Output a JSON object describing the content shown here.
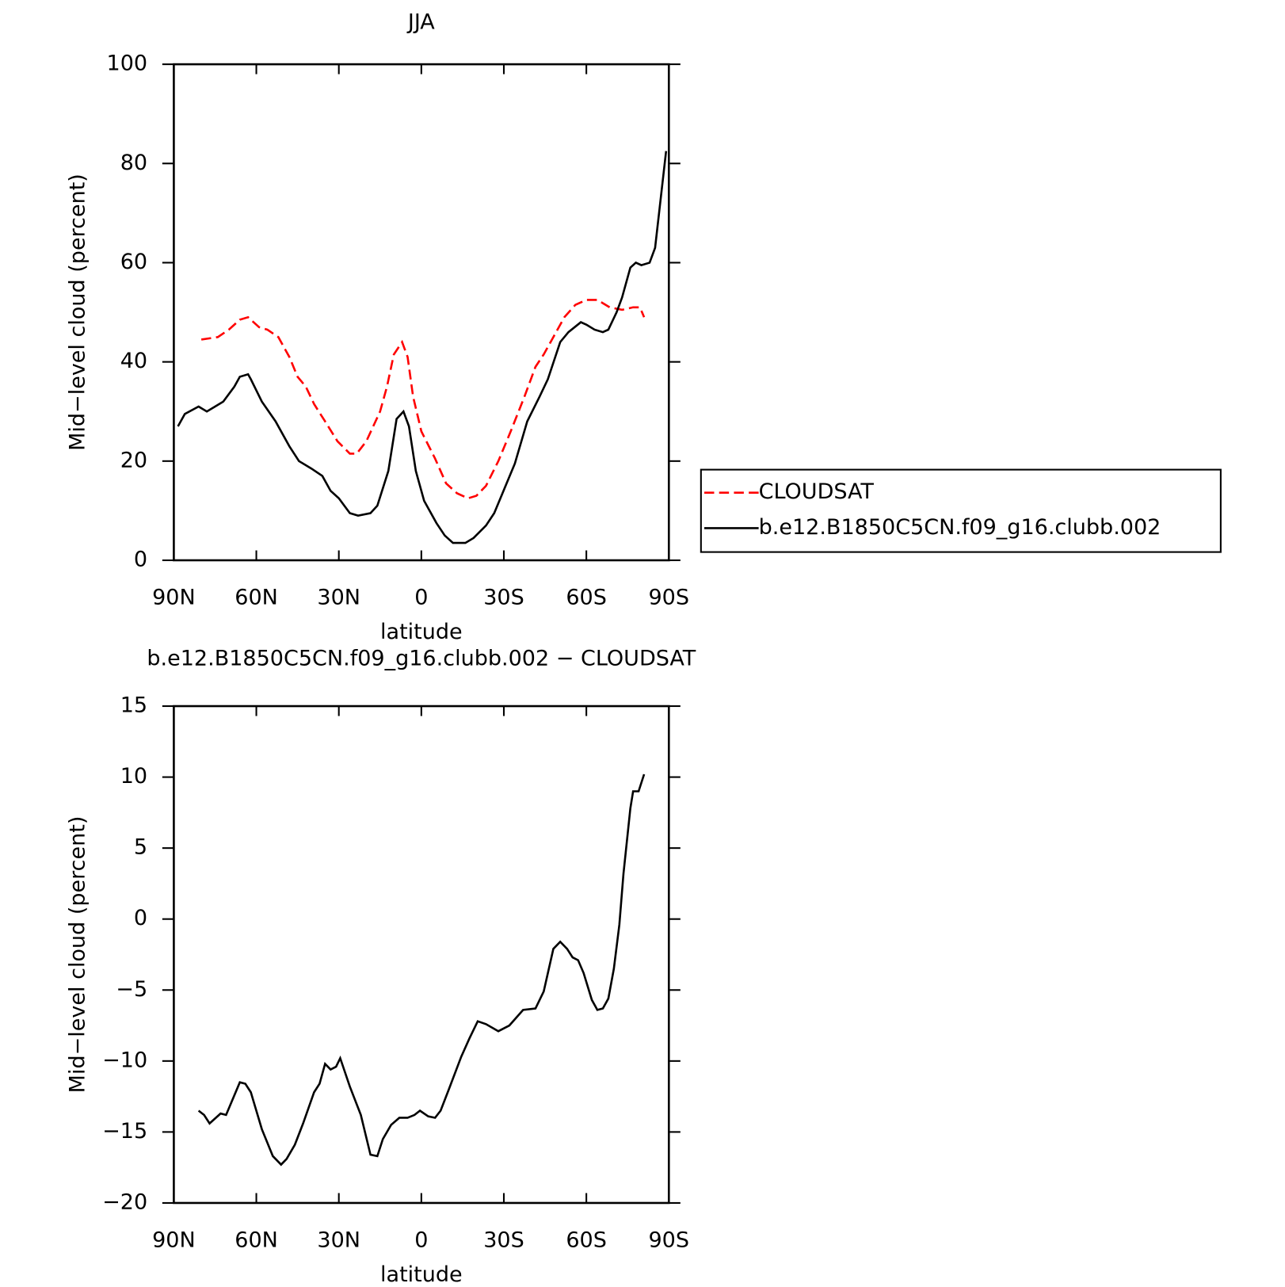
{
  "chart_data": [
    {
      "type": "line",
      "title": "JJA",
      "xlabel": "latitude",
      "ylabel": "Mid−level cloud (percent)",
      "xlim": [
        90,
        -90
      ],
      "xticks": [
        {
          "value": 90,
          "label": "90N"
        },
        {
          "value": 60,
          "label": "60N"
        },
        {
          "value": 30,
          "label": "30N"
        },
        0,
        {
          "value": -30,
          "label": "30S"
        },
        {
          "value": -60,
          "label": "60S"
        },
        {
          "value": -90,
          "label": "90S"
        }
      ],
      "ylim": [
        0,
        100
      ],
      "yticks": [
        0,
        20,
        40,
        60,
        80,
        100
      ],
      "legend": "outside right",
      "series": [
        {
          "name": "CLOUDSAT",
          "color": "#ff0000",
          "dash": "dashed",
          "x": [
            80,
            74,
            70,
            66,
            63,
            59,
            56,
            52,
            48,
            45,
            42,
            39,
            35,
            30.5,
            26,
            23.5,
            20,
            15,
            12.5,
            10,
            7,
            5,
            3,
            0,
            -5,
            -9,
            -13,
            -17,
            -20,
            -23.5,
            -28,
            -32.5,
            -37.5,
            -41.5,
            -44.5,
            -48,
            -52,
            -56,
            -60,
            -64,
            -68.5,
            -73,
            -77,
            -79.5,
            -81
          ],
          "values": [
            44.5,
            45,
            46.5,
            48.5,
            49,
            47,
            46.5,
            45,
            41,
            37,
            35,
            31.5,
            28,
            24,
            21.5,
            21.5,
            24,
            30,
            35,
            41.5,
            44,
            41,
            33,
            26,
            20.5,
            15.5,
            13.5,
            12.5,
            13,
            15,
            20,
            26,
            33,
            39,
            41.5,
            45,
            49,
            51.5,
            52.5,
            52.5,
            51,
            50.5,
            51,
            51,
            49
          ]
        },
        {
          "name": "b.e12.B1850C5CN.f09_g16.clubb.002",
          "color": "#000000",
          "dash": "solid",
          "x": [
            88.5,
            86,
            81,
            78,
            75,
            72,
            68,
            66,
            63,
            62,
            58,
            53,
            48,
            44.5,
            40,
            36,
            33,
            30,
            26,
            23,
            18.5,
            16,
            12,
            9,
            6.5,
            4.5,
            2,
            -1,
            -5.5,
            -8.5,
            -11.5,
            -16,
            -19,
            -23.5,
            -26.5,
            -29.5,
            -34,
            -38.5,
            -43,
            -46,
            -50.5,
            -53.5,
            -58,
            -60,
            -63,
            -66,
            -68,
            -71,
            -73,
            -76,
            -78,
            -80,
            -83,
            -85,
            -89
          ],
          "values": [
            27,
            29.5,
            31,
            30,
            31,
            32,
            35,
            37,
            37.5,
            36.5,
            32,
            28,
            23,
            20,
            18.5,
            17,
            14,
            12.5,
            9.5,
            9,
            9.5,
            11,
            18,
            28.5,
            30,
            27,
            18,
            12,
            7.5,
            5,
            3.5,
            3.5,
            4.5,
            7,
            9.5,
            13.5,
            19.5,
            28,
            33,
            36.5,
            44,
            46,
            48,
            47.5,
            46.5,
            46,
            46.5,
            50,
            53,
            59,
            60,
            59.5,
            60,
            63,
            82.5
          ]
        }
      ]
    },
    {
      "type": "line",
      "title": "b.e12.B1850C5CN.f09_g16.clubb.002 − CLOUDSAT",
      "xlabel": "latitude",
      "ylabel": "Mid−level cloud (percent)",
      "xlim": [
        90,
        -90
      ],
      "xticks": [
        {
          "value": 90,
          "label": "90N"
        },
        {
          "value": 60,
          "label": "60N"
        },
        {
          "value": 30,
          "label": "30N"
        },
        0,
        {
          "value": -30,
          "label": "30S"
        },
        {
          "value": -60,
          "label": "60S"
        },
        {
          "value": -90,
          "label": "90S"
        }
      ],
      "ylim": [
        -20,
        15
      ],
      "yticks": [
        {
          "value": -20,
          "label": "−20"
        },
        {
          "value": -15,
          "label": "−15"
        },
        {
          "value": -10,
          "label": "−10"
        },
        {
          "value": -5,
          "label": "−5"
        },
        0,
        5,
        10,
        15
      ],
      "color": "#000000",
      "x": [
        81,
        79,
        77,
        73,
        71,
        66,
        64,
        62,
        58,
        54,
        51,
        49,
        46,
        43,
        39,
        37,
        35,
        33,
        31,
        29.5,
        26,
        22,
        18.5,
        16,
        14,
        11,
        8,
        5,
        2.5,
        0.5,
        -2.5,
        -5,
        -7,
        -10,
        -14.5,
        -17.5,
        -20.5,
        -23.5,
        -28,
        -32,
        -37,
        -41.5,
        -44.5,
        -48,
        -50.5,
        -53,
        -55,
        -57,
        -59,
        -62,
        -64,
        -66,
        -68,
        -70,
        -72,
        -73.5,
        -76,
        -77,
        -79,
        -81
      ],
      "values": [
        -13.5,
        -13.8,
        -14.4,
        -13.7,
        -13.8,
        -11.5,
        -11.6,
        -12.2,
        -14.8,
        -16.7,
        -17.3,
        -16.9,
        -15.9,
        -14.4,
        -12.2,
        -11.6,
        -10.2,
        -10.6,
        -10.4,
        -9.8,
        -11.8,
        -13.8,
        -16.6,
        -16.7,
        -15.5,
        -14.5,
        -14.0,
        -14.0,
        -13.8,
        -13.5,
        -13.9,
        -14.0,
        -13.5,
        -12.0,
        -9.7,
        -8.4,
        -7.2,
        -7.4,
        -7.9,
        -7.5,
        -6.4,
        -6.3,
        -5.1,
        -2.1,
        -1.6,
        -2.1,
        -2.7,
        -2.9,
        -3.8,
        -5.7,
        -6.4,
        -6.3,
        -5.6,
        -3.5,
        -0.4,
        3.2,
        7.8,
        9.0,
        9.0,
        10.2
      ]
    }
  ]
}
